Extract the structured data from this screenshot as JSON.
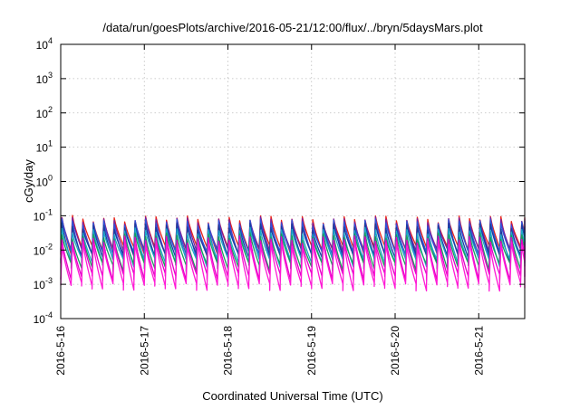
{
  "chart_data": {
    "type": "line",
    "title": "/data/run/goesPlots/archive/2016-05-21/12:00/flux/../bryn/5daysMars.plot",
    "xlabel": "Coordinated Universal Time (UTC)",
    "ylabel": "cGy/day",
    "yscale": "log",
    "ylim": [
      0.0001,
      10000
    ],
    "xlim": [
      0.0,
      5.55
    ],
    "grid": true,
    "y_ticks": [
      {
        "base": "10",
        "exp": "4"
      },
      {
        "base": "10",
        "exp": "3"
      },
      {
        "base": "10",
        "exp": "2"
      },
      {
        "base": "10",
        "exp": "1"
      },
      {
        "base": "10",
        "exp": "0"
      },
      {
        "base": "10",
        "exp": "-1"
      },
      {
        "base": "10",
        "exp": "-2"
      },
      {
        "base": "10",
        "exp": "-3"
      },
      {
        "base": "10",
        "exp": "-4"
      }
    ],
    "x_ticks": [
      {
        "label": "2016-5-16",
        "day": 0
      },
      {
        "label": "2016-5-17",
        "day": 1
      },
      {
        "label": "2016-5-18",
        "day": 2
      },
      {
        "label": "2016-5-19",
        "day": 3
      },
      {
        "label": "2016-5-20",
        "day": 4
      },
      {
        "label": "2016-5-21",
        "day": 5
      }
    ],
    "cycles_per_day": 8,
    "series": [
      {
        "name": "series-red",
        "color": "#e8251c",
        "peak": 0.082,
        "trough": 0.0105
      },
      {
        "name": "series-purple",
        "color": "#7a1fa2",
        "peak": 0.074,
        "trough": 0.0085
      },
      {
        "name": "series-blue",
        "color": "#2f55d8",
        "peak": 0.065,
        "trough": 0.007
      },
      {
        "name": "series-navy",
        "color": "#1a3e9e",
        "peak": 0.05,
        "trough": 0.006
      },
      {
        "name": "series-cyan",
        "color": "#1ca8c8",
        "peak": 0.036,
        "trough": 0.0045
      },
      {
        "name": "series-green",
        "color": "#17a05a",
        "peak": 0.026,
        "trough": 0.0032
      },
      {
        "name": "series-magenta",
        "color": "#e400c8",
        "peak": 0.021,
        "trough": 0.0016
      },
      {
        "name": "series-magenta-low",
        "color": "#ff1ad6",
        "peak": 0.016,
        "trough": 0.00085
      }
    ]
  }
}
